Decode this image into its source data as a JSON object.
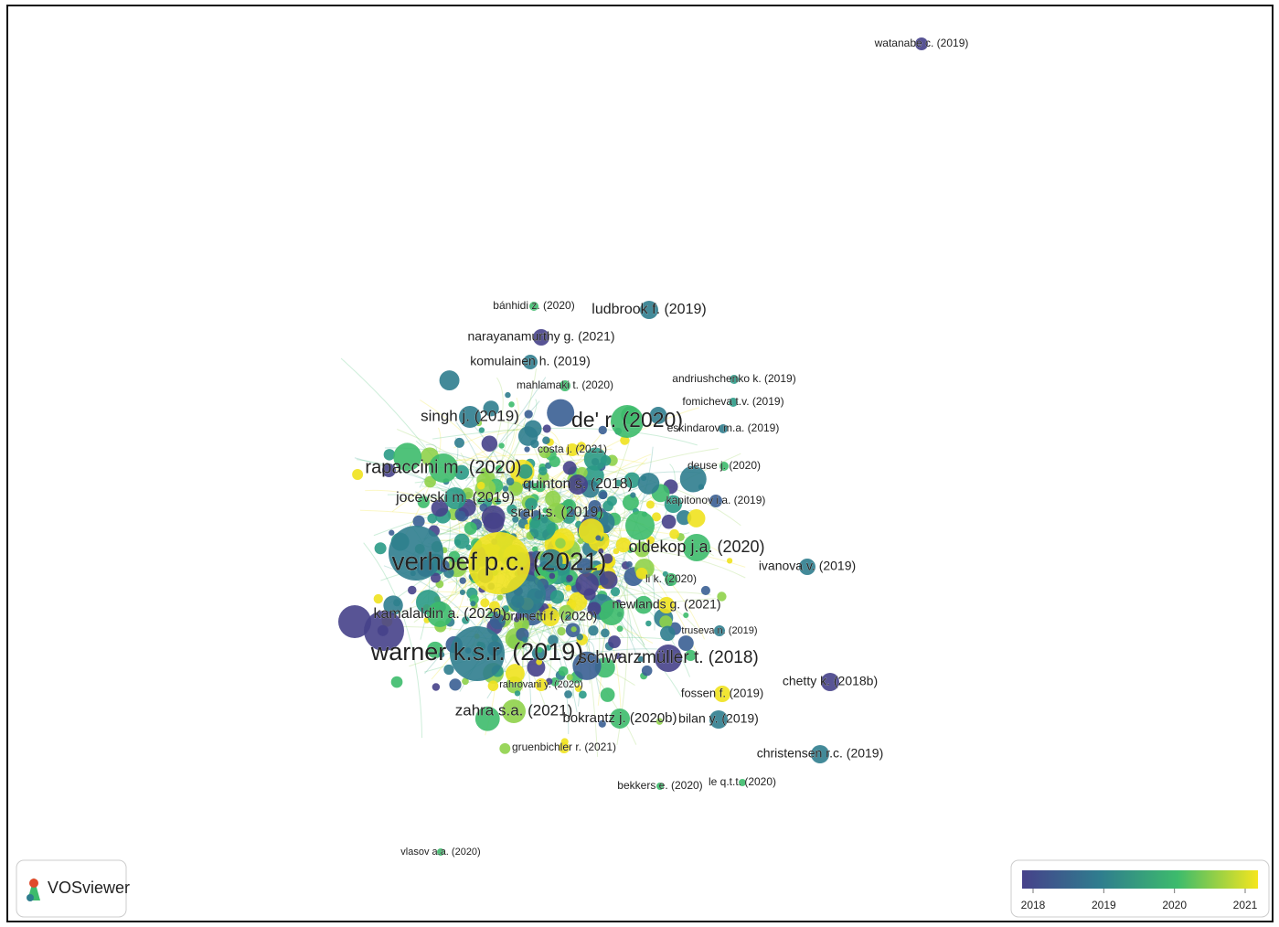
{
  "nodes": [
    {
      "label": "watanabe c. (2019)"
    },
    {
      "label": "bánhidi z. (2020)"
    },
    {
      "label": "ludbrook f. (2019)"
    },
    {
      "label": "narayanamurthy g. (2021)"
    },
    {
      "label": "komulainen h. (2019)"
    },
    {
      "label": "andriushchenko k. (2019)"
    },
    {
      "label": "mahlamaki t. (2020)"
    },
    {
      "label": "fomicheva t.v. (2019)"
    },
    {
      "label": "singh j. (2019)"
    },
    {
      "label": "de' r. (2020)"
    },
    {
      "label": "eskindarov m.a. (2019)"
    },
    {
      "label": "costa j. (2021)"
    },
    {
      "label": "deuse j. (2020)"
    },
    {
      "label": "rapaccini m. (2020)"
    },
    {
      "label": "quinton s. (2018)"
    },
    {
      "label": "jocevski m. (2019)"
    },
    {
      "label": "kapitonov i.a. (2019)"
    },
    {
      "label": "srai j.s. (2019)"
    },
    {
      "label": "oldekop j.a. (2020)"
    },
    {
      "label": "verhoef p.c. (2021)"
    },
    {
      "label": "ivanova v. (2019)"
    },
    {
      "label": "li k. (2020)"
    },
    {
      "label": "newlands g. (2021)"
    },
    {
      "label": "kamalaldin a. (2020)"
    },
    {
      "label": "brunetti f. (2020)"
    },
    {
      "label": "truseva n. (2019)"
    },
    {
      "label": "warner k.s.r. (2019)"
    },
    {
      "label": "schwarzmüller t. (2018)"
    },
    {
      "label": "chetty k. (2018b)"
    },
    {
      "label": "rahrovani y. (2020)"
    },
    {
      "label": "fossen f. (2019)"
    },
    {
      "label": "zahra s.a. (2021)"
    },
    {
      "label": "bokrantz j. (2020b)"
    },
    {
      "label": "bilan y. (2019)"
    },
    {
      "label": "christensen r.c. (2019)"
    },
    {
      "label": "gruenbichler r. (2021)"
    },
    {
      "label": "bekkers e. (2020)"
    },
    {
      "label": "le q.t.t. (2020)"
    },
    {
      "label": "vlasov a.a. (2020)"
    }
  ],
  "logo": {
    "text": "VOSviewer"
  },
  "legend": {
    "ticks": [
      2018,
      2019,
      2020,
      2021
    ]
  }
}
